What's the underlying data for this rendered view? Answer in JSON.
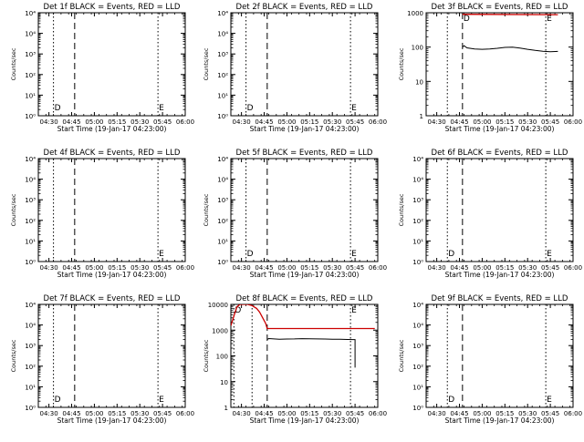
{
  "colors": {
    "events": "#000000",
    "lld": "#cc0000",
    "axes": "#000000",
    "background": "#ffffff"
  },
  "chart_data": [
    {
      "type": "line",
      "panel": "Det 1f",
      "title": "Det 1f BLACK = Events, RED = LLD",
      "xlabel": "Start Time (19-Jan-17 04:23:00)",
      "ylabel": "Counts/sec",
      "yscale": "log",
      "xlim": [
        "04:23",
        "06:00"
      ],
      "ylim": [
        1,
        10000
      ],
      "x_ticks": [
        "04:30",
        "04:45",
        "05:00",
        "05:15",
        "05:30",
        "05:45",
        "06:00"
      ],
      "y_ticks": [
        "10⁰",
        "10¹",
        "10²",
        "10³",
        "10⁴",
        "10⁴"
      ],
      "markers": [
        {
          "label": "D",
          "x": "04:33",
          "style": "dotted"
        },
        {
          "label": "",
          "x": "04:47",
          "style": "dashed"
        },
        {
          "label": "E",
          "x": "05:42",
          "style": "dotted"
        }
      ],
      "series": []
    },
    {
      "type": "line",
      "panel": "Det 2f",
      "title": "Det 2f BLACK = Events, RED = LLD",
      "xlabel": "Start Time (19-Jan-17 04:23:00)",
      "ylabel": "Counts/sec",
      "yscale": "log",
      "xlim": [
        "04:23",
        "06:00"
      ],
      "ylim": [
        1,
        10000
      ],
      "x_ticks": [
        "04:30",
        "04:45",
        "05:00",
        "05:15",
        "05:30",
        "05:45",
        "06:00"
      ],
      "y_ticks": [
        "10⁰",
        "10¹",
        "10²",
        "10³",
        "10⁴",
        "10⁴"
      ],
      "markers": [
        {
          "label": "D",
          "x": "04:33",
          "style": "dotted"
        },
        {
          "label": "",
          "x": "04:47",
          "style": "dashed"
        },
        {
          "label": "E",
          "x": "05:42",
          "style": "dotted"
        }
      ],
      "series": []
    },
    {
      "type": "line",
      "panel": "Det 3f",
      "title": "Det 3f BLACK = Events, RED = LLD",
      "xlabel": "Start Time (19-Jan-17 04:23:00)",
      "ylabel": "Counts/sec",
      "yscale": "log",
      "xlim": [
        "04:23",
        "06:00"
      ],
      "ylim": [
        1,
        1000
      ],
      "x_ticks": [
        "04:30",
        "04:45",
        "05:00",
        "05:15",
        "05:30",
        "05:45",
        "06:00"
      ],
      "y_ticks": [
        "1",
        "10",
        "100",
        "1000"
      ],
      "markers": [
        {
          "label": "",
          "x": "04:37",
          "style": "dotted"
        },
        {
          "label": "D",
          "x": "04:47",
          "style": "dashed"
        },
        {
          "label": "E",
          "x": "05:42",
          "style": "dotted"
        }
      ],
      "series": [
        {
          "name": "Events",
          "color": "#000000",
          "x": [
            "04:47",
            "04:48",
            "04:50",
            "04:55",
            "05:00",
            "05:05",
            "05:10",
            "05:15",
            "05:20",
            "05:25",
            "05:30",
            "05:35",
            "05:40",
            "05:45",
            "05:50"
          ],
          "y": [
            100,
            110,
            95,
            88,
            86,
            88,
            92,
            98,
            100,
            94,
            86,
            80,
            76,
            73,
            75
          ]
        },
        {
          "name": "LLD",
          "color": "#cc0000",
          "x": [
            "04:47",
            "05:50"
          ],
          "y": [
            900,
            880
          ]
        }
      ]
    },
    {
      "type": "line",
      "panel": "Det 4f",
      "title": "Det 4f BLACK = Events, RED = LLD",
      "xlabel": "Start Time (19-Jan-17 04:23:00)",
      "ylabel": "Counts/sec",
      "yscale": "log",
      "xlim": [
        "04:23",
        "06:00"
      ],
      "ylim": [
        1,
        10000
      ],
      "x_ticks": [
        "04:30",
        "04:45",
        "05:00",
        "05:15",
        "05:30",
        "05:45",
        "06:00"
      ],
      "y_ticks": [
        "10⁰",
        "10¹",
        "10²",
        "10³",
        "10⁴",
        "10⁴"
      ],
      "markers": [
        {
          "label": "",
          "x": "04:33",
          "style": "dotted"
        },
        {
          "label": "",
          "x": "04:47",
          "style": "dashed"
        },
        {
          "label": "E",
          "x": "05:42",
          "style": "dotted"
        }
      ],
      "series": []
    },
    {
      "type": "line",
      "panel": "Det 5f",
      "title": "Det 5f BLACK = Events, RED = LLD",
      "xlabel": "Start Time (19-Jan-17 04:23:00)",
      "ylabel": "Counts/sec",
      "yscale": "log",
      "xlim": [
        "04:23",
        "06:00"
      ],
      "ylim": [
        1,
        10000
      ],
      "x_ticks": [
        "04:30",
        "04:45",
        "05:00",
        "05:15",
        "05:30",
        "05:45",
        "06:00"
      ],
      "y_ticks": [
        "10⁰",
        "10¹",
        "10²",
        "10³",
        "10⁴",
        "10⁴"
      ],
      "markers": [
        {
          "label": "D",
          "x": "04:33",
          "style": "dotted"
        },
        {
          "label": "",
          "x": "04:47",
          "style": "dashed"
        },
        {
          "label": "E",
          "x": "05:42",
          "style": "dotted"
        }
      ],
      "series": []
    },
    {
      "type": "line",
      "panel": "Det 6f",
      "title": "Det 6f BLACK = Events, RED = LLD",
      "xlabel": "Start Time (19-Jan-17 04:23:00)",
      "ylabel": "Counts/sec",
      "yscale": "log",
      "xlim": [
        "04:23",
        "06:00"
      ],
      "ylim": [
        1,
        10000
      ],
      "x_ticks": [
        "04:30",
        "04:45",
        "05:00",
        "05:15",
        "05:30",
        "05:45",
        "06:00"
      ],
      "y_ticks": [
        "10⁰",
        "10¹",
        "10²",
        "10³",
        "10⁴",
        "10⁴"
      ],
      "markers": [
        {
          "label": "D",
          "x": "04:37",
          "style": "dotted"
        },
        {
          "label": "",
          "x": "04:47",
          "style": "dashed"
        },
        {
          "label": "E",
          "x": "05:42",
          "style": "dotted"
        }
      ],
      "series": []
    },
    {
      "type": "line",
      "panel": "Det 7f",
      "title": "Det 7f BLACK = Events, RED = LLD",
      "xlabel": "Start Time (19-Jan-17 04:23:00)",
      "ylabel": "Counts/sec",
      "yscale": "log",
      "xlim": [
        "04:23",
        "06:00"
      ],
      "ylim": [
        1,
        10000
      ],
      "x_ticks": [
        "04:30",
        "04:45",
        "05:00",
        "05:15",
        "05:30",
        "05:45",
        "06:00"
      ],
      "y_ticks": [
        "10⁰",
        "10¹",
        "10²",
        "10³",
        "10⁴",
        "10⁴"
      ],
      "markers": [
        {
          "label": "D",
          "x": "04:33",
          "style": "dotted"
        },
        {
          "label": "",
          "x": "04:47",
          "style": "dashed"
        },
        {
          "label": "E",
          "x": "05:42",
          "style": "dotted"
        }
      ],
      "series": []
    },
    {
      "type": "line",
      "panel": "Det 8f",
      "title": "Det 8f BLACK = Events, RED = LLD",
      "xlabel": "Start Time (19-Jan-17 04:23:00)",
      "ylabel": "Counts/sec",
      "yscale": "log",
      "xlim": [
        "04:23",
        "06:00"
      ],
      "ylim": [
        1,
        10000
      ],
      "x_ticks": [
        "04:30",
        "04:45",
        "05:00",
        "05:15",
        "05:30",
        "05:45",
        "06:00"
      ],
      "y_ticks": [
        "1",
        "10",
        "100",
        "1000",
        "10000"
      ],
      "markers": [
        {
          "label": "D",
          "x": "04:25",
          "style": "dotted"
        },
        {
          "label": "",
          "x": "04:37",
          "style": "dotted"
        },
        {
          "label": "",
          "x": "04:47",
          "style": "dashed"
        },
        {
          "label": "E",
          "x": "05:42",
          "style": "dotted"
        }
      ],
      "series": [
        {
          "name": "Events",
          "color": "#000000",
          "x": [
            "04:47",
            "04:48",
            "04:55",
            "05:00",
            "05:05",
            "05:10",
            "05:15",
            "05:20",
            "05:25",
            "05:30",
            "05:35",
            "05:40",
            "05:44",
            "05:45",
            "05:45"
          ],
          "y": [
            430,
            470,
            440,
            450,
            455,
            465,
            460,
            455,
            450,
            445,
            440,
            435,
            430,
            430,
            35
          ]
        },
        {
          "name": "LLD",
          "color": "#cc0000",
          "x": [
            "04:23",
            "04:25",
            "04:27",
            "04:29",
            "04:31",
            "04:34",
            "04:37",
            "04:40",
            "04:42",
            "04:44",
            "04:46",
            "04:47",
            "05:00",
            "05:20",
            "05:40",
            "05:58"
          ],
          "y": [
            1500,
            3500,
            8000,
            10000,
            10000,
            10000,
            9000,
            7000,
            5000,
            3000,
            1800,
            1150,
            1150,
            1150,
            1150,
            1150
          ]
        }
      ]
    },
    {
      "type": "line",
      "panel": "Det 9f",
      "title": "Det 9f BLACK = Events, RED = LLD",
      "xlabel": "Start Time (19-Jan-17 04:23:00)",
      "ylabel": "Counts/sec",
      "yscale": "log",
      "xlim": [
        "04:23",
        "06:00"
      ],
      "ylim": [
        1,
        10000
      ],
      "x_ticks": [
        "04:30",
        "04:45",
        "05:00",
        "05:15",
        "05:30",
        "05:45",
        "06:00"
      ],
      "y_ticks": [
        "10⁰",
        "10¹",
        "10²",
        "10³",
        "10⁴",
        "10⁴"
      ],
      "markers": [
        {
          "label": "D",
          "x": "04:37",
          "style": "dotted"
        },
        {
          "label": "",
          "x": "04:47",
          "style": "dashed"
        },
        {
          "label": "E",
          "x": "05:42",
          "style": "dotted"
        }
      ],
      "series": []
    }
  ]
}
